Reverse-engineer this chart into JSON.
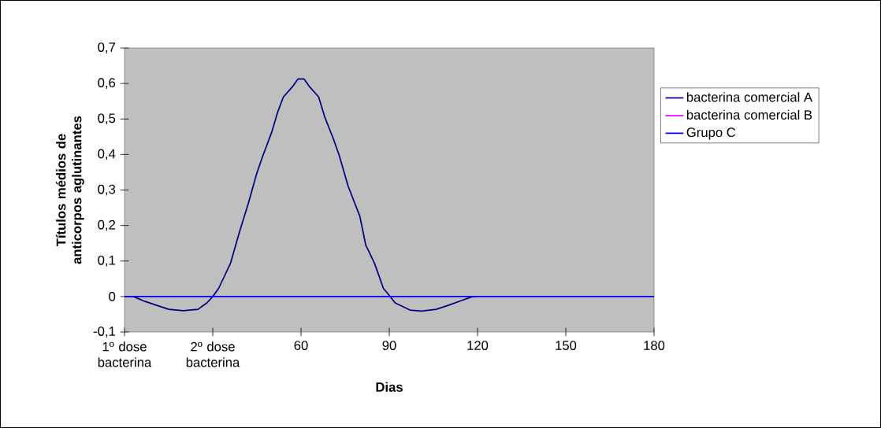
{
  "chart_data": {
    "type": "line",
    "xlabel": "Dias",
    "ylabel": "Títulos médios de anticorpos aglutinantes",
    "xlim": [
      0,
      180
    ],
    "xticks": [
      {
        "value": 0,
        "label": null
      },
      {
        "value": 30,
        "label": null
      },
      60,
      90,
      120,
      150,
      180
    ],
    "annotations": [
      "1º dose bacterina",
      "2º dose bacterina"
    ],
    "ylim": [
      -0.1,
      0.7
    ],
    "yticks": [
      {
        "value": -0.1,
        "label": "-0,1"
      },
      0,
      {
        "value": 0.1,
        "label": "0,1"
      },
      {
        "value": 0.2,
        "label": "0,2"
      },
      {
        "value": 0.3,
        "label": "0,3"
      },
      {
        "value": 0.4,
        "label": "0,4"
      },
      {
        "value": 0.5,
        "label": "0,5"
      },
      {
        "value": 0.6,
        "label": "0,6"
      },
      {
        "value": 0.7,
        "label": "0,7"
      }
    ],
    "legend": "right",
    "marker": "none",
    "line_style": "solid",
    "series": [
      {
        "name": "bacterina comercial A",
        "color": "#000080",
        "x": [
          0,
          3,
          7,
          15,
          20,
          25,
          28,
          30,
          32,
          36,
          39,
          42,
          45,
          47,
          50,
          52,
          54,
          57,
          59,
          61,
          63,
          66,
          68,
          71,
          73,
          76,
          80,
          82,
          85,
          88,
          90,
          92,
          97,
          101,
          106,
          110,
          114,
          118,
          120
        ],
        "values": [
          0,
          0,
          -0.014,
          -0.036,
          -0.04,
          -0.036,
          -0.018,
          0,
          0.023,
          0.093,
          0.18,
          0.26,
          0.348,
          0.396,
          0.462,
          0.518,
          0.562,
          0.59,
          0.613,
          0.613,
          0.59,
          0.562,
          0.507,
          0.444,
          0.397,
          0.311,
          0.226,
          0.145,
          0.093,
          0.023,
          0.003,
          -0.018,
          -0.038,
          -0.041,
          -0.036,
          -0.025,
          -0.013,
          -0.001,
          0
        ]
      },
      {
        "name": "bacterina comercial B",
        "color": "#ff00ff",
        "values": [
          null
        ]
      },
      {
        "name": "Grupo C",
        "color": "#0000ff",
        "x": [
          0,
          180
        ],
        "values": [
          0,
          0
        ]
      }
    ]
  }
}
